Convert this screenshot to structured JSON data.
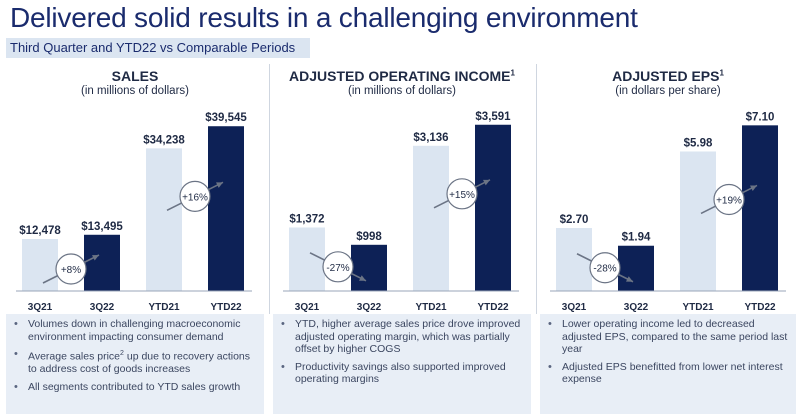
{
  "header": {
    "title": "Delivered solid results in a challenging environment",
    "subtitle": "Third Quarter and YTD22 vs Comparable Periods"
  },
  "colors": {
    "light_bar": "#dbe5f1",
    "dark_bar": "#0d2156",
    "title": "#1a2b6d",
    "bullet_bg": "#e8eef6"
  },
  "chart_data": [
    {
      "type": "bar",
      "title": "SALES",
      "unit_label": "(in millions of dollars)",
      "categories": [
        "3Q21",
        "3Q22",
        "YTD21",
        "YTD22"
      ],
      "values": [
        12478,
        13495,
        34238,
        39545
      ],
      "data_labels": [
        "$12,478",
        "$13,495",
        "$34,238",
        "$39,545"
      ],
      "ylim": [
        0,
        42000
      ],
      "annotations": [
        {
          "text": "+8%",
          "between": [
            "3Q21",
            "3Q22"
          ],
          "direction": "up"
        },
        {
          "text": "+16%",
          "between": [
            "YTD21",
            "YTD22"
          ],
          "direction": "up"
        }
      ]
    },
    {
      "type": "bar",
      "title": "ADJUSTED OPERATING INCOME",
      "title_sup": "1",
      "unit_label": "(in millions of dollars)",
      "categories": [
        "3Q21",
        "3Q22",
        "YTD21",
        "YTD22"
      ],
      "values": [
        1372,
        998,
        3136,
        3591
      ],
      "data_labels": [
        "$1,372",
        "$998",
        "$3,136",
        "$3,591"
      ],
      "ylim": [
        0,
        3780
      ],
      "annotations": [
        {
          "text": "-27%",
          "between": [
            "3Q21",
            "3Q22"
          ],
          "direction": "down"
        },
        {
          "text": "+15%",
          "between": [
            "YTD21",
            "YTD22"
          ],
          "direction": "up"
        }
      ]
    },
    {
      "type": "bar",
      "title": "ADJUSTED EPS",
      "title_sup": "1",
      "unit_label": "(in dollars per share)",
      "categories": [
        "3Q21",
        "3Q22",
        "YTD21",
        "YTD22"
      ],
      "values": [
        2.7,
        1.94,
        5.98,
        7.1
      ],
      "data_labels": [
        "$2.70",
        "$1.94",
        "$5.98",
        "$7.10"
      ],
      "ylim": [
        0,
        7.5
      ],
      "annotations": [
        {
          "text": "-28%",
          "between": [
            "3Q21",
            "3Q22"
          ],
          "direction": "down"
        },
        {
          "text": "+19%",
          "between": [
            "YTD21",
            "YTD22"
          ],
          "direction": "up"
        }
      ]
    }
  ],
  "bullets": [
    [
      "Volumes down in challenging macroeconomic environment impacting consumer demand",
      {
        "pre": "Average sales price",
        "sup": "2",
        "post": " up due to recovery actions to address cost of goods increases"
      },
      "All segments contributed to YTD sales growth"
    ],
    [
      "YTD, higher average sales price drove improved adjusted operating margin, which was partially offset by higher COGS",
      "Productivity savings also supported improved operating margins"
    ],
    [
      "Lower operating income led to decreased adjusted EPS, compared to the same period last year",
      "Adjusted EPS benefitted from lower net interest expense"
    ]
  ]
}
